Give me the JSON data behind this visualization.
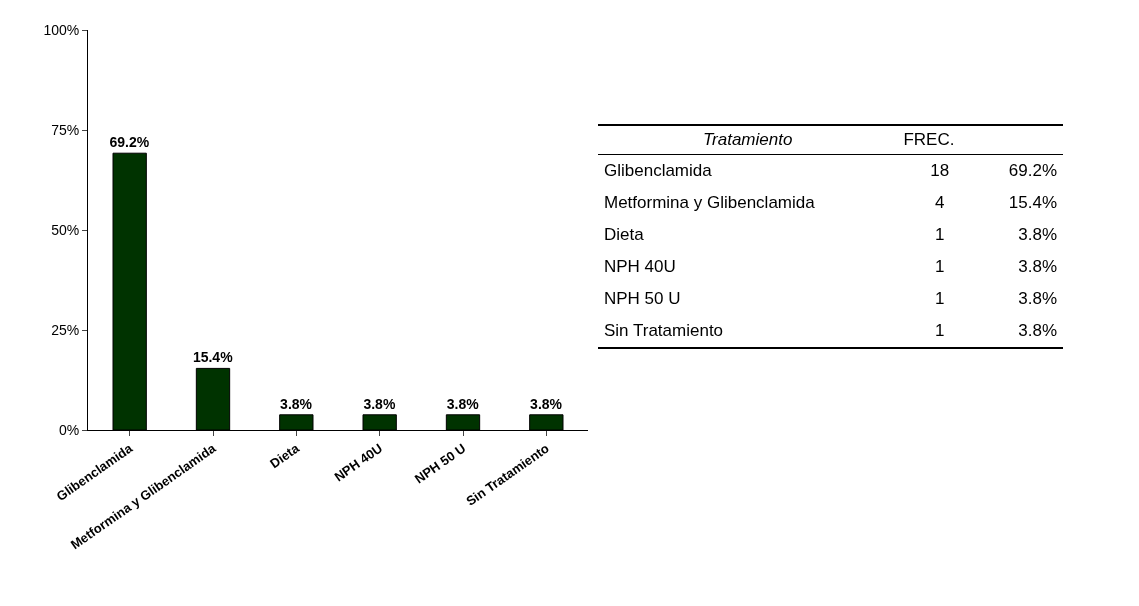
{
  "chart_data": [
    {
      "type": "bar",
      "categories": [
        "Glibenclamida",
        "Metformina y Glibenclamida",
        "Dieta",
        "NPH 40U",
        "NPH 50 U",
        "Sin Tratamiento"
      ],
      "values": [
        69.2,
        15.4,
        3.8,
        3.8,
        3.8,
        3.8
      ],
      "value_labels": [
        "69.2%",
        "15.4%",
        "3.8%",
        "3.8%",
        "3.8%",
        "3.8%"
      ],
      "color": "#003300",
      "ylim": [
        0,
        100
      ],
      "yticks": [
        {
          "value": 0,
          "label": "0%"
        },
        {
          "value": 25,
          "label": "25%"
        },
        {
          "value": 50,
          "label": "50%"
        },
        {
          "value": 75,
          "label": "75%"
        },
        {
          "value": 100,
          "label": "100%"
        }
      ],
      "grid": false
    },
    {
      "type": "other",
      "data_labels": true,
      "annotations": [
        "Tratamiento"
      ],
      "categories": [
        "Glibenclamida",
        "Metformina y Glibenclamida",
        "Dieta",
        "NPH 40U",
        "NPH 50 U",
        "Sin Tratamiento"
      ],
      "series": [
        {
          "name": "FREC.",
          "values": [
            18,
            4,
            1,
            1,
            1,
            1
          ]
        },
        {
          "values": [
            69.2,
            15.4,
            3.8,
            3.8,
            3.8,
            3.8
          ],
          "value_labels": [
            "69.2%",
            "15.4%",
            "3.8%",
            "3.8%",
            "3.8%",
            "3.8%"
          ]
        }
      ]
    }
  ]
}
